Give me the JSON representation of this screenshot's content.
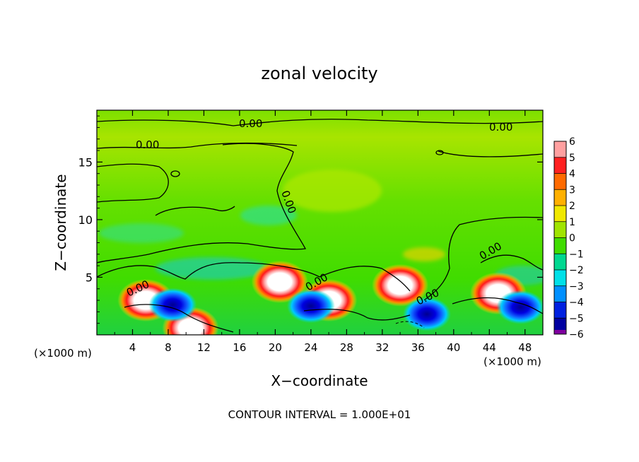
{
  "chart_data": {
    "type": "heatmap",
    "title": "zonal velocity",
    "xlabel": "X−coordinate",
    "ylabel": "Z−coordinate",
    "x_unit": "(×1000 m)",
    "z_unit": "(×1000 m)",
    "xlim": [
      0,
      50
    ],
    "ylim": [
      0,
      19.5
    ],
    "x_ticks": [
      "4",
      "8",
      "12",
      "16",
      "20",
      "24",
      "28",
      "32",
      "36",
      "40",
      "44",
      "48"
    ],
    "y_ticks": [
      "5",
      "10",
      "15"
    ],
    "contour_interval_text": "CONTOUR INTERVAL = 1.000E+01",
    "contour_labels": [
      "0.00",
      "0.00",
      "0.00",
      "0.00",
      "0.00",
      "0.00",
      "0.00",
      "0.00"
    ],
    "colorbar": {
      "ticks": [
        "6",
        "5",
        "4",
        "3",
        "2",
        "1",
        "0",
        "−1",
        "−2",
        "−3",
        "−4",
        "−5",
        "−6"
      ],
      "range": [
        -6,
        6
      ]
    },
    "features": [
      {
        "x": 5.5,
        "z": 3.0,
        "sign": "positive"
      },
      {
        "x": 10.5,
        "z": 0.6,
        "sign": "positive"
      },
      {
        "x": 20.5,
        "z": 4.6,
        "sign": "positive"
      },
      {
        "x": 26.0,
        "z": 3.0,
        "sign": "positive"
      },
      {
        "x": 34.0,
        "z": 4.3,
        "sign": "positive"
      },
      {
        "x": 45.0,
        "z": 3.6,
        "sign": "positive"
      },
      {
        "x": 8.5,
        "z": 2.6,
        "sign": "negative"
      },
      {
        "x": 24.0,
        "z": 2.5,
        "sign": "negative"
      },
      {
        "x": 37.0,
        "z": 1.8,
        "sign": "negative"
      },
      {
        "x": 47.5,
        "z": 2.4,
        "sign": "negative"
      }
    ]
  }
}
